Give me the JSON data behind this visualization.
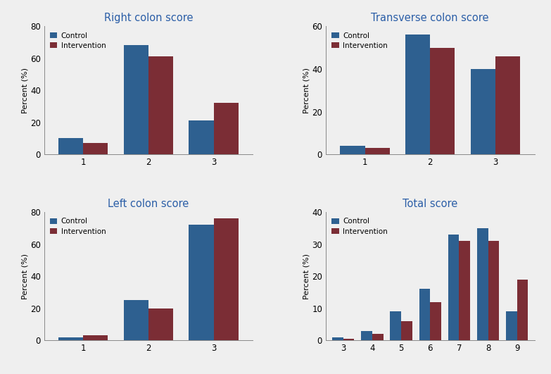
{
  "title_color": "#2B5EA7",
  "bar_color_control": "#2E6090",
  "bar_color_intervention": "#7B2D35",
  "ylabel": "Percent (%)",
  "legend_control": "Control",
  "legend_intervention": "Intervention",
  "bg_color": "#F0F0F0",
  "charts": [
    {
      "title": "Right colon score",
      "categories": [
        1,
        2,
        3
      ],
      "control": [
        10,
        68,
        21
      ],
      "intervention": [
        7,
        61,
        32
      ],
      "ylim": [
        0,
        80
      ],
      "yticks": [
        0,
        20,
        40,
        60,
        80
      ]
    },
    {
      "title": "Transverse colon score",
      "categories": [
        1,
        2,
        3
      ],
      "control": [
        4,
        56,
        40
      ],
      "intervention": [
        3,
        50,
        46
      ],
      "ylim": [
        0,
        60
      ],
      "yticks": [
        0,
        20,
        40,
        60
      ]
    },
    {
      "title": "Left colon score",
      "categories": [
        1,
        2,
        3
      ],
      "control": [
        2,
        25,
        72
      ],
      "intervention": [
        3,
        20,
        76
      ],
      "ylim": [
        0,
        80
      ],
      "yticks": [
        0,
        20,
        40,
        60,
        80
      ]
    },
    {
      "title": "Total score",
      "categories": [
        3,
        4,
        5,
        6,
        7,
        8,
        9
      ],
      "control": [
        1,
        3,
        9,
        16,
        33,
        35,
        9
      ],
      "intervention": [
        0.5,
        2,
        6,
        12,
        31,
        31,
        19
      ],
      "ylim": [
        0,
        40
      ],
      "yticks": [
        0,
        10,
        20,
        30,
        40
      ]
    }
  ]
}
